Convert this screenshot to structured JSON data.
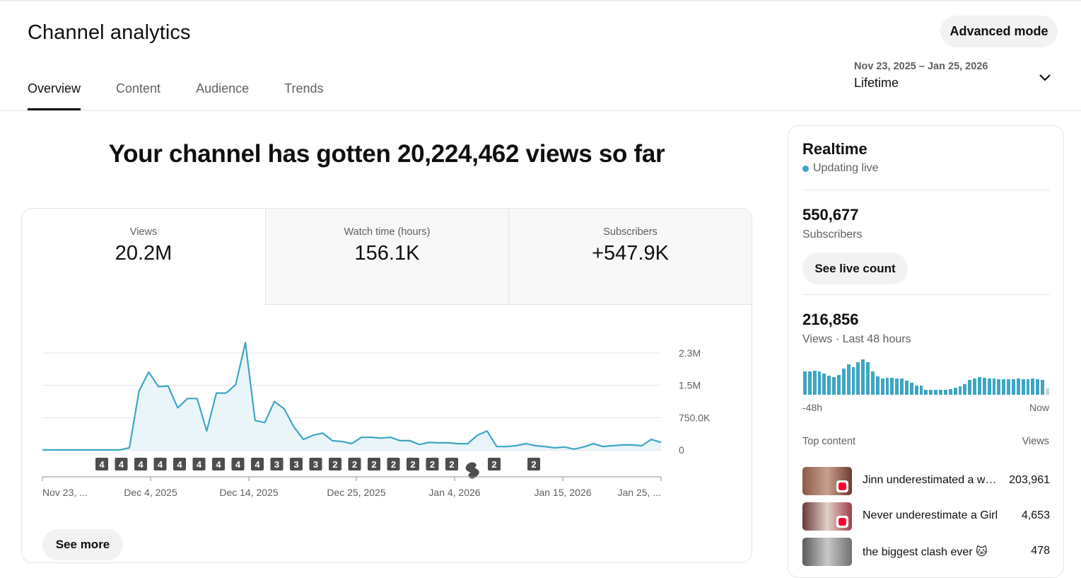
{
  "page": {
    "title": "Channel analytics",
    "advanced_mode_label": "Advanced mode"
  },
  "tabs": [
    {
      "label": "Overview",
      "active": true
    },
    {
      "label": "Content"
    },
    {
      "label": "Audience"
    },
    {
      "label": "Trends"
    }
  ],
  "date_range": {
    "range": "Nov 23, 2025 – Jan 25, 2026",
    "period": "Lifetime"
  },
  "headline": "Your channel has gotten 20,224,462 views so far",
  "metrics": [
    {
      "label": "Views",
      "value": "20.2M"
    },
    {
      "label": "Watch time (hours)",
      "value": "156.1K"
    },
    {
      "label": "Subscribers",
      "value": "+547.9K"
    }
  ],
  "chart_data": {
    "type": "area",
    "series": [
      {
        "values": [
          0,
          0,
          0,
          0,
          0,
          0,
          0,
          0,
          0,
          0.05,
          1.4,
          1.85,
          1.5,
          1.52,
          1.0,
          1.22,
          1.22,
          0.45,
          1.35,
          1.35,
          1.55,
          2.55,
          0.7,
          0.65,
          1.15,
          0.98,
          0.55,
          0.25,
          0.35,
          0.4,
          0.22,
          0.2,
          0.15,
          0.3,
          0.3,
          0.28,
          0.3,
          0.22,
          0.22,
          0.13,
          0.18,
          0.17,
          0.17,
          0.15,
          0.15,
          0.35,
          0.45,
          0.08,
          0.08,
          0.1,
          0.15,
          0.1,
          0.08,
          0.05,
          0.07,
          0.02,
          0.07,
          0.15,
          0.08,
          0.1,
          0.12,
          0.12,
          0.1,
          0.25,
          0.18
        ]
      }
    ],
    "x_tick_labels": [
      "Nov 23, ...",
      "Dec 4, 2025",
      "Dec 14, 2025",
      "Dec 25, 2025",
      "Jan 4, 2026",
      "Jan 15, 2026",
      "Jan 25, ..."
    ],
    "y_tick_labels": [
      "2.3M",
      "1.5M",
      "750.0K",
      "0"
    ],
    "ylim": [
      0,
      2.3
    ],
    "grid": true,
    "markers": [
      "4",
      "4",
      "4",
      "4",
      "4",
      "4",
      "4",
      "4",
      "4",
      "3",
      "3",
      "3",
      "2",
      "2",
      "2",
      "2",
      "2",
      "2",
      "2",
      "shorts",
      "2",
      "2"
    ]
  },
  "see_more_label": "See more",
  "realtime": {
    "title": "Realtime",
    "status": "Updating live",
    "subscribers_value": "550,677",
    "subscribers_label": "Subscribers",
    "see_live_count_label": "See live count",
    "views_value": "216,856",
    "views_label": "Views · Last 48 hours",
    "spark_values": [
      30,
      30,
      31,
      30,
      28,
      25,
      23,
      26,
      34,
      40,
      36,
      42,
      46,
      42,
      30,
      24,
      21,
      22,
      22,
      21,
      21,
      18,
      16,
      12,
      12,
      6,
      6,
      6,
      6,
      6,
      7,
      9,
      11,
      14,
      19,
      21,
      23,
      22,
      21,
      21,
      20,
      20,
      20,
      20,
      21,
      20,
      20,
      21,
      20,
      19,
      8
    ],
    "axis_start": "-48h",
    "axis_end": "Now",
    "top_content_label": "Top content",
    "views_col_label": "Views",
    "items": [
      {
        "title": "Jinn underestimated a woman",
        "views": "203,961"
      },
      {
        "title": "Never underestimate a Girl",
        "views": "4,653"
      },
      {
        "title": "the biggest clash ever 🐱",
        "views": "478"
      }
    ]
  },
  "colors": {
    "accent": "#3ea6c4",
    "shorts_red": "#ff0033",
    "marker_bg": "#4d4d4d"
  }
}
